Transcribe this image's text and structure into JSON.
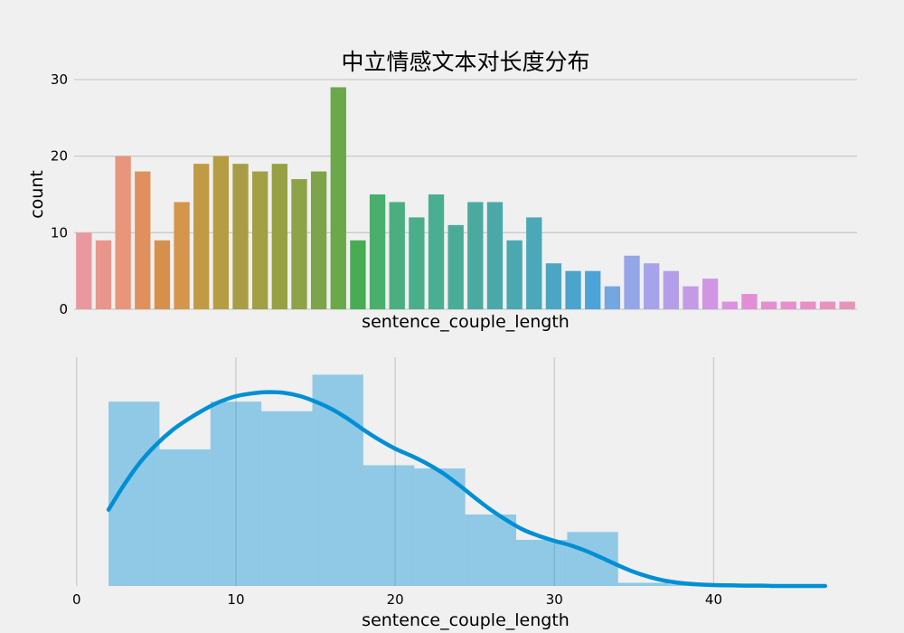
{
  "chart_data": [
    {
      "type": "bar",
      "title": "中立情感文本对长度分布",
      "xlabel": "sentence_couple_length",
      "ylabel": "count",
      "ylim": [
        0,
        30
      ],
      "yticks": [
        0,
        10,
        20,
        30
      ],
      "grid": "horizontal",
      "values": [
        10,
        9,
        20,
        18,
        9,
        14,
        19,
        20,
        19,
        18,
        19,
        17,
        18,
        29,
        9,
        15,
        14,
        12,
        15,
        11,
        14,
        14,
        9,
        12,
        6,
        5,
        5,
        3,
        7,
        6,
        5,
        3,
        4,
        1,
        2,
        1,
        1,
        1,
        1,
        1
      ],
      "colors": [
        "#e8989e",
        "#e8958c",
        "#e8957c",
        "#e0905c",
        "#d6904c",
        "#d4964c",
        "#c09a44",
        "#b69d44",
        "#a89d44",
        "#a29f44",
        "#98a044",
        "#8ea248",
        "#7ea44a",
        "#6aa84a",
        "#48ad52",
        "#4aae6c",
        "#4aae80",
        "#4aae8a",
        "#4aae92",
        "#4aab98",
        "#4aaaa0",
        "#4aa9a8",
        "#4aa8b0",
        "#4aa8b8",
        "#4aa6c2",
        "#4aa4cc",
        "#4ca3d8",
        "#74a6e0",
        "#94a6e8",
        "#a8a2ea",
        "#b49ee8",
        "#c49ae6",
        "#d096e4",
        "#dc92e0",
        "#e28ed6",
        "#e68ed0",
        "#e88ecc",
        "#e890c6",
        "#e892be",
        "#e894b8"
      ]
    },
    {
      "type": "histogram",
      "xlabel": "sentence_couple_length",
      "xlim": [
        -0.5,
        49
      ],
      "xticks": [
        0,
        10,
        20,
        30,
        40
      ],
      "bins": [
        {
          "x0": 2.0,
          "x1": 5.2,
          "value": 0.058
        },
        {
          "x0": 5.2,
          "x1": 8.4,
          "value": 0.043
        },
        {
          "x0": 8.4,
          "x1": 11.6,
          "value": 0.058
        },
        {
          "x0": 11.6,
          "x1": 14.8,
          "value": 0.055
        },
        {
          "x0": 14.8,
          "x1": 18.0,
          "value": 0.0665
        },
        {
          "x0": 18.0,
          "x1": 21.2,
          "value": 0.038
        },
        {
          "x0": 21.2,
          "x1": 24.4,
          "value": 0.037
        },
        {
          "x0": 24.4,
          "x1": 27.6,
          "value": 0.0225
        },
        {
          "x0": 27.6,
          "x1": 30.8,
          "value": 0.0145
        },
        {
          "x0": 30.8,
          "x1": 34.0,
          "value": 0.017
        },
        {
          "x0": 34.0,
          "x1": 37.2,
          "value": 0.001
        },
        {
          "x0": 37.2,
          "x1": 40.4,
          "value": 0.0005
        },
        {
          "x0": 40.4,
          "x1": 43.6,
          "value": 0.0002
        },
        {
          "x0": 43.6,
          "x1": 46.8,
          "value": 0.0002
        }
      ],
      "kde": {
        "x": [
          2,
          3,
          4,
          5,
          6,
          7,
          8,
          9,
          10,
          11,
          12,
          13,
          14,
          15,
          16,
          17,
          18,
          19,
          20,
          21,
          22,
          23,
          24,
          25,
          26,
          27,
          28,
          29,
          30,
          31,
          32,
          33,
          34,
          35,
          36,
          37,
          38,
          39,
          40,
          41,
          42,
          43,
          44,
          45,
          46,
          47
        ],
        "y": [
          0.024,
          0.032,
          0.039,
          0.0445,
          0.049,
          0.0525,
          0.0555,
          0.058,
          0.0597,
          0.0606,
          0.061,
          0.0608,
          0.0598,
          0.058,
          0.0557,
          0.0527,
          0.0492,
          0.046,
          0.0432,
          0.041,
          0.0385,
          0.0355,
          0.0318,
          0.0278,
          0.024,
          0.0207,
          0.0178,
          0.0158,
          0.0142,
          0.0128,
          0.011,
          0.0088,
          0.0065,
          0.0044,
          0.0028,
          0.0016,
          0.0009,
          0.0005,
          0.0003,
          0.0002,
          0.0001,
          0.0001,
          0.0,
          0.0,
          0.0,
          0.0
        ]
      },
      "ylim": [
        0,
        0.072
      ]
    }
  ]
}
